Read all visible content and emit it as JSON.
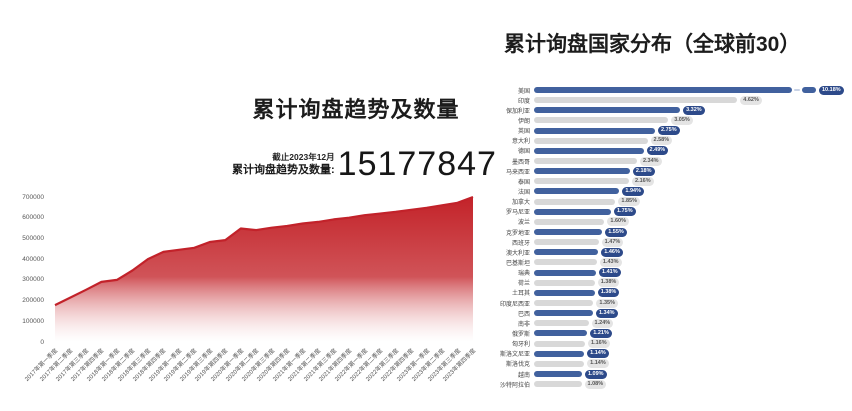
{
  "left_chart": {
    "title": "累计询盘趋势及数量",
    "asof_label": "截止2023年12月",
    "total_label": "累计询盘趋势及数量:",
    "total_value": "15177847"
  },
  "right_chart": {
    "title": "累计询盘国家分布（全球前30）"
  },
  "colors": {
    "area_line": "#c2222a",
    "area_top": "#c32329",
    "area_bottom": "#ffffff",
    "bar_blue": "#41619e",
    "bar_gray": "#d8d8d8",
    "badge_blue": "#2d4a8a",
    "badge_blue_text": "#ffffff",
    "badge_gray": "#e4e4e4",
    "badge_gray_text": "#555555",
    "break_dash": "#c9d3e6"
  },
  "chart_data": [
    {
      "type": "area",
      "title": "累计询盘趋势及数量",
      "xlabel": "",
      "ylabel": "",
      "ylim": [
        0,
        700000
      ],
      "ytick_step": 100000,
      "grid": false,
      "legend": "none",
      "x": [
        "2017年第一季度",
        "2017年第二季度",
        "2017年第三季度",
        "2017年第四季度",
        "2018年第一季度",
        "2018年第二季度",
        "2018年第三季度",
        "2018年第四季度",
        "2019年第一季度",
        "2019年第二季度",
        "2019年第三季度",
        "2019年第四季度",
        "2020年第一季度",
        "2020年第二季度",
        "2020年第三季度",
        "2020年第四季度",
        "2021年第一季度",
        "2021年第二季度",
        "2021年第三季度",
        "2021年第四季度",
        "2022年第一季度",
        "2022年第二季度",
        "2022年第三季度",
        "2022年第四季度",
        "2023年第一季度",
        "2023年第二季度",
        "2023年第三季度",
        "2023年第四季度"
      ],
      "values": [
        178000,
        215000,
        252000,
        290000,
        300000,
        345000,
        400000,
        435000,
        445000,
        455000,
        483000,
        492000,
        548000,
        540000,
        552000,
        560000,
        572000,
        580000,
        592000,
        600000,
        612000,
        620000,
        628000,
        638000,
        648000,
        660000,
        672000,
        700000
      ]
    },
    {
      "type": "bar",
      "orientation": "horizontal",
      "title": "累计询盘国家分布（全球前30）",
      "unit": "%",
      "axis_break_on_first_bar": true,
      "categories": [
        "美国",
        "印度",
        "保加利亚",
        "伊朗",
        "英国",
        "意大利",
        "德国",
        "墨西哥",
        "马来西亚",
        "泰国",
        "法国",
        "加拿大",
        "罗马尼亚",
        "波兰",
        "克罗地亚",
        "西班牙",
        "澳大利亚",
        "巴基斯坦",
        "瑞典",
        "荷兰",
        "土耳其",
        "印度尼西亚",
        "巴西",
        "南非",
        "俄罗斯",
        "匈牙利",
        "斯洛文尼亚",
        "斯洛伐克",
        "越南",
        "沙特阿拉伯"
      ],
      "values": [
        10.18,
        4.62,
        3.32,
        3.05,
        2.75,
        2.58,
        2.49,
        2.34,
        2.18,
        2.16,
        1.94,
        1.85,
        1.75,
        1.6,
        1.55,
        1.47,
        1.46,
        1.43,
        1.41,
        1.38,
        1.38,
        1.35,
        1.34,
        1.24,
        1.21,
        1.16,
        1.14,
        1.14,
        1.09,
        1.08
      ]
    }
  ]
}
